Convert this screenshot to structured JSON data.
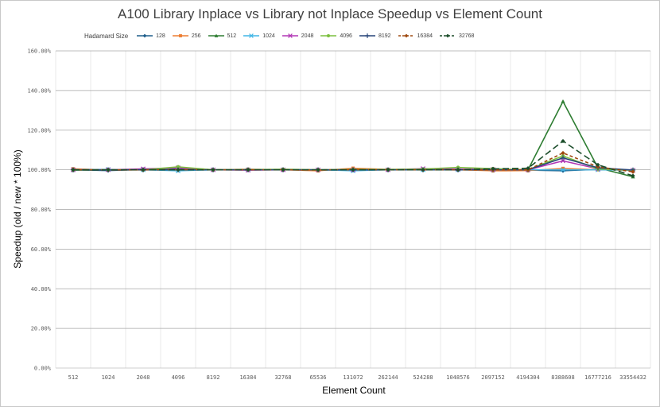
{
  "chart_data": {
    "type": "line",
    "title": "A100 Library Inplace vs Library not Inplace Speedup vs Element Count",
    "xlabel": "Element Count",
    "ylabel": "Speedup (old / new * 100%)",
    "legend_title": "Hadamard Size",
    "legend_position": "top",
    "grid": true,
    "ylim": [
      0,
      160
    ],
    "yticks": [
      "0.00%",
      "20.00%",
      "40.00%",
      "60.00%",
      "80.00%",
      "100.00%",
      "120.00%",
      "140.00%",
      "160.00%"
    ],
    "categories": [
      "512",
      "1024",
      "2048",
      "4096",
      "8192",
      "16384",
      "32768",
      "65536",
      "131072",
      "262144",
      "524288",
      "1048576",
      "2097152",
      "4194304",
      "8388608",
      "16777216",
      "33554432"
    ],
    "series": [
      {
        "name": "128",
        "color": "#1f5f8b",
        "marker": "diamond",
        "dash": "",
        "values": [
          100.0,
          99.6,
          100.1,
          100.4,
          100.0,
          100.2,
          100.1,
          99.9,
          99.8,
          100.0,
          100.1,
          99.9,
          100.2,
          99.8,
          99.5,
          100.2,
          99.9
        ]
      },
      {
        "name": "256",
        "color": "#ed7d31",
        "marker": "square",
        "dash": "",
        "values": [
          100.5,
          99.9,
          99.9,
          100.1,
          100.0,
          100.3,
          100.0,
          99.5,
          100.8,
          100.2,
          100.2,
          100.0,
          99.5,
          99.6,
          100.7,
          100.0,
          99.8
        ]
      },
      {
        "name": "512",
        "color": "#2e7d32",
        "marker": "triangle",
        "dash": "",
        "values": [
          99.8,
          100.0,
          100.0,
          100.0,
          100.0,
          100.0,
          100.0,
          100.0,
          100.0,
          100.0,
          100.0,
          100.0,
          100.3,
          100.0,
          134.5,
          101.0,
          96.5
        ]
      },
      {
        "name": "1024",
        "color": "#41b6e6",
        "marker": "x",
        "dash": "",
        "values": [
          100.0,
          100.2,
          100.0,
          99.5,
          100.0,
          100.0,
          100.0,
          100.0,
          99.5,
          100.0,
          100.0,
          100.0,
          100.0,
          100.0,
          100.0,
          100.0,
          99.8
        ]
      },
      {
        "name": "2048",
        "color": "#b236b5",
        "marker": "x",
        "dash": "",
        "values": [
          100.0,
          100.0,
          100.5,
          101.0,
          100.0,
          99.8,
          100.0,
          100.0,
          100.0,
          100.0,
          100.6,
          100.4,
          100.2,
          100.0,
          104.5,
          100.5,
          99.8
        ]
      },
      {
        "name": "4096",
        "color": "#7cbf3f",
        "marker": "circle",
        "dash": "",
        "values": [
          100.0,
          100.0,
          100.0,
          101.5,
          100.0,
          100.1,
          100.3,
          100.0,
          100.2,
          100.2,
          100.4,
          101.2,
          100.6,
          100.0,
          107.0,
          100.4,
          99.8
        ]
      },
      {
        "name": "8192",
        "color": "#264478",
        "marker": "plus",
        "dash": "",
        "values": [
          100.0,
          100.0,
          100.0,
          100.0,
          100.0,
          100.0,
          100.0,
          100.0,
          100.0,
          100.0,
          100.0,
          100.0,
          100.0,
          100.0,
          106.0,
          101.0,
          99.9
        ]
      },
      {
        "name": "16384",
        "color": "#9e480e",
        "marker": "diamond",
        "dash": "4,3",
        "values": [
          100.0,
          100.0,
          100.0,
          100.0,
          100.0,
          100.0,
          100.0,
          100.0,
          100.0,
          100.0,
          100.0,
          100.0,
          100.0,
          100.0,
          108.5,
          101.5,
          99.0
        ]
      },
      {
        "name": "32768",
        "color": "#1b4d2a",
        "marker": "diamond",
        "dash": "8,4",
        "values": [
          100.0,
          100.0,
          100.0,
          100.0,
          100.0,
          100.0,
          100.0,
          100.0,
          100.0,
          100.0,
          100.0,
          100.0,
          100.5,
          100.8,
          114.5,
          102.5,
          97.0
        ]
      }
    ]
  }
}
